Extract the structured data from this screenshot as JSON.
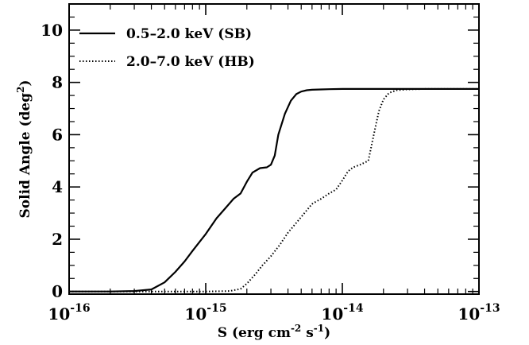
{
  "chart_data": {
    "type": "line",
    "xscale": "log",
    "xlim": [
      1e-16,
      1e-13
    ],
    "ylim": [
      -0.1,
      11
    ],
    "xlabel": "S (erg cm",
    "xlabel_sup1": "-2",
    "xlabel_mid": " s",
    "xlabel_sup2": "-1",
    "xlabel_end": ")",
    "ylabel": "Solid Angle (deg",
    "ylabel_sup": "2",
    "ylabel_end": ")",
    "x_ticks": [
      {
        "base": "10",
        "exp": "-16",
        "value": 1e-16
      },
      {
        "base": "10",
        "exp": "-15",
        "value": 1e-15
      },
      {
        "base": "10",
        "exp": "-14",
        "value": 1e-14
      },
      {
        "base": "10",
        "exp": "-13",
        "value": 1e-13
      }
    ],
    "y_ticks": [
      "0",
      "2",
      "4",
      "6",
      "8",
      "10"
    ],
    "grid": false,
    "legend_position": "top-left",
    "series": [
      {
        "name": "0.5–2.0 keV (SB)",
        "style": "solid",
        "color": "#000000",
        "x": [
          1e-16,
          2e-16,
          3e-16,
          4e-16,
          5e-16,
          6e-16,
          7e-16,
          8e-16,
          1e-15,
          1.2e-15,
          1.4e-15,
          1.6e-15,
          1.8e-15,
          2e-15,
          2.2e-15,
          2.5e-15,
          2.8e-15,
          3e-15,
          3.2e-15,
          3.4e-15,
          3.8e-15,
          4.2e-15,
          4.6e-15,
          5e-15,
          5.5e-15,
          6e-15,
          7e-15,
          8e-15,
          1e-14,
          2e-14,
          5e-14,
          1e-13
        ],
        "y": [
          0,
          0,
          0.02,
          0.08,
          0.35,
          0.75,
          1.15,
          1.55,
          2.2,
          2.8,
          3.2,
          3.55,
          3.75,
          4.2,
          4.55,
          4.72,
          4.75,
          4.85,
          5.2,
          6.0,
          6.8,
          7.3,
          7.55,
          7.65,
          7.7,
          7.72,
          7.73,
          7.74,
          7.75,
          7.75,
          7.75,
          7.75
        ]
      },
      {
        "name": "2.0–7.0 keV (HB)",
        "style": "dotted",
        "color": "#000000",
        "x": [
          1e-16,
          1e-15,
          1.5e-15,
          1.8e-15,
          2e-15,
          2.3e-15,
          2.6e-15,
          3e-15,
          3.5e-15,
          4e-15,
          5e-15,
          6e-15,
          7e-15,
          8e-15,
          9e-15,
          1e-14,
          1.1e-14,
          1.2e-14,
          1.35e-14,
          1.55e-14,
          1.7e-14,
          1.85e-14,
          2e-14,
          2.2e-14,
          2.5e-14,
          3e-14,
          4e-14,
          5e-14,
          1e-13
        ],
        "y": [
          0,
          0,
          0.02,
          0.1,
          0.3,
          0.65,
          1.0,
          1.35,
          1.8,
          2.25,
          2.85,
          3.35,
          3.55,
          3.75,
          3.9,
          4.25,
          4.6,
          4.75,
          4.85,
          5.0,
          6.0,
          6.9,
          7.35,
          7.6,
          7.7,
          7.73,
          7.75,
          7.75,
          7.75
        ]
      }
    ]
  }
}
